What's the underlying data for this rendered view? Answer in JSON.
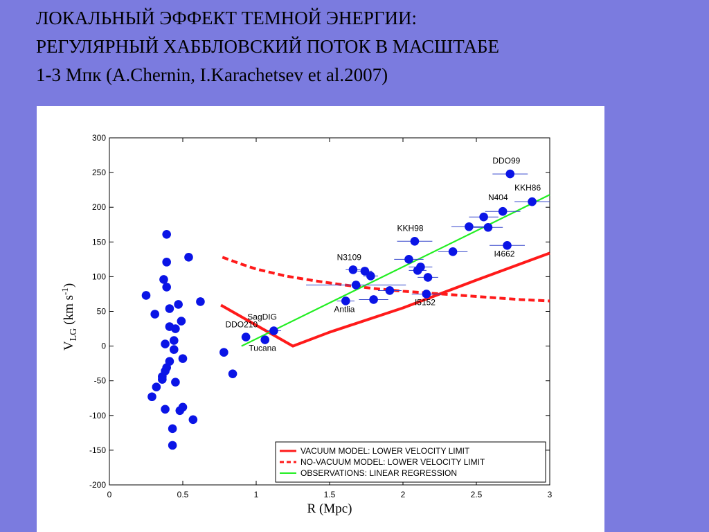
{
  "slide": {
    "title_line1": "ЛОКАЛЬНЫЙ ЭФФЕКТ ТЕМНОЙ ЭНЕРГИИ:",
    "title_line2": "РЕГУЛЯРНЫЙ ХАББЛОВСКИЙ ПОТОК В МАСШТАБЕ",
    "title_line3": "1-3 Мпк (A.Chernin, I.Karachetsev et al.2007)"
  },
  "chart_data": {
    "type": "scatter",
    "xlabel": "R (Mpc)",
    "ylabel_main": "V",
    "ylabel_sub": "LG",
    "ylabel_unit": "(km s",
    "ylabel_exp": "-1",
    "ylabel_close": ")",
    "xlim": [
      0,
      3
    ],
    "ylim": [
      -200,
      300
    ],
    "xticks": [
      0,
      0.5,
      1,
      1.5,
      2,
      2.5,
      3
    ],
    "xtick_labels": [
      "0",
      "0.5",
      "1",
      "1.5",
      "2",
      "2.5",
      "3"
    ],
    "yticks": [
      300,
      250,
      200,
      150,
      100,
      50,
      0,
      -50,
      -100,
      -150,
      -200
    ],
    "ytick_labels": [
      "300",
      "250",
      "200",
      "150",
      "100",
      "50",
      "0",
      "-50",
      "-100",
      "-150",
      "-200"
    ],
    "grid": false,
    "legend_position": "bottom-right",
    "colors": {
      "points": "#0a14e6",
      "vacuum": "#ff1a1a",
      "novacuum": "#ff1a1a",
      "regression": "#22ee22",
      "errorbar": "#3344cc"
    },
    "points": [
      {
        "x": 0.25,
        "y": 73
      },
      {
        "x": 0.31,
        "y": 46
      },
      {
        "x": 0.39,
        "y": 161
      },
      {
        "x": 0.37,
        "y": 96
      },
      {
        "x": 0.39,
        "y": 121
      },
      {
        "x": 0.39,
        "y": 85
      },
      {
        "x": 0.41,
        "y": 54
      },
      {
        "x": 0.47,
        "y": 60
      },
      {
        "x": 0.41,
        "y": 28
      },
      {
        "x": 0.49,
        "y": 36
      },
      {
        "x": 0.45,
        "y": 25
      },
      {
        "x": 0.38,
        "y": 3
      },
      {
        "x": 0.44,
        "y": 8
      },
      {
        "x": 0.44,
        "y": -5
      },
      {
        "x": 0.5,
        "y": -18
      },
      {
        "x": 0.41,
        "y": -22
      },
      {
        "x": 0.39,
        "y": -31
      },
      {
        "x": 0.38,
        "y": -36
      },
      {
        "x": 0.36,
        "y": -44
      },
      {
        "x": 0.36,
        "y": -48
      },
      {
        "x": 0.45,
        "y": -52
      },
      {
        "x": 0.32,
        "y": -59
      },
      {
        "x": 0.29,
        "y": -73
      },
      {
        "x": 0.38,
        "y": -91
      },
      {
        "x": 0.5,
        "y": -88
      },
      {
        "x": 0.48,
        "y": -93
      },
      {
        "x": 0.57,
        "y": -106
      },
      {
        "x": 0.43,
        "y": -119
      },
      {
        "x": 0.43,
        "y": -143
      },
      {
        "x": 0.54,
        "y": 128
      },
      {
        "x": 0.62,
        "y": 64
      },
      {
        "x": 0.78,
        "y": -9,
        "xerr": 0.02
      },
      {
        "x": 0.84,
        "y": -40
      },
      {
        "x": 0.93,
        "y": 13,
        "xerr": 0.03
      },
      {
        "x": 1.06,
        "y": 9
      },
      {
        "x": 1.12,
        "y": 22,
        "xerr": 0.05
      },
      {
        "x": 1.61,
        "y": 65,
        "xerr": 0.06
      },
      {
        "x": 1.66,
        "y": 110,
        "xerr": 0.05
      },
      {
        "x": 1.68,
        "y": 88,
        "xerr": 0.34
      },
      {
        "x": 1.74,
        "y": 108,
        "xerr": 0.05
      },
      {
        "x": 1.78,
        "y": 101,
        "xerr": 0.05
      },
      {
        "x": 1.8,
        "y": 67,
        "xerr": 0.1
      },
      {
        "x": 1.91,
        "y": 80,
        "xerr": 0.08
      },
      {
        "x": 2.04,
        "y": 125,
        "xerr": 0.1
      },
      {
        "x": 2.08,
        "y": 151,
        "xerr": 0.12
      },
      {
        "x": 2.1,
        "y": 109,
        "xerr": 0.06
      },
      {
        "x": 2.12,
        "y": 114,
        "xerr": 0.08
      },
      {
        "x": 2.17,
        "y": 99,
        "xerr": 0.07
      },
      {
        "x": 2.16,
        "y": 75,
        "xerr": 0.1
      },
      {
        "x": 2.34,
        "y": 136,
        "xerr": 0.1
      },
      {
        "x": 2.45,
        "y": 172,
        "xerr": 0.12
      },
      {
        "x": 2.55,
        "y": 186,
        "xerr": 0.1
      },
      {
        "x": 2.58,
        "y": 171,
        "xerr": 0.1
      },
      {
        "x": 2.68,
        "y": 194,
        "xerr": 0.12
      },
      {
        "x": 2.71,
        "y": 145,
        "xerr": 0.12
      },
      {
        "x": 2.73,
        "y": 248,
        "xerr": 0.12
      },
      {
        "x": 2.88,
        "y": 208,
        "xerr": 0.12
      }
    ],
    "point_labels": [
      {
        "text": "DDO99",
        "x": 2.61,
        "y": 263
      },
      {
        "text": "KKH86",
        "x": 2.76,
        "y": 224
      },
      {
        "text": "N404",
        "x": 2.58,
        "y": 210
      },
      {
        "text": "KKH98",
        "x": 1.96,
        "y": 166
      },
      {
        "text": "I4662",
        "x": 2.62,
        "y": 129
      },
      {
        "text": "N3109",
        "x": 1.55,
        "y": 124
      },
      {
        "text": "SagDIG",
        "x": 0.94,
        "y": 38
      },
      {
        "text": "DDO210",
        "x": 0.79,
        "y": 27
      },
      {
        "text": "Tucana",
        "x": 0.95,
        "y": -7
      },
      {
        "text": "Antlia",
        "x": 1.53,
        "y": 49
      },
      {
        "text": "I5152",
        "x": 2.08,
        "y": 59
      }
    ],
    "series": [
      {
        "name": "VACUUM MODEL: LOWER VELOCITY LIMIT",
        "style": "solid",
        "x": [
          0.76,
          1.25,
          1.5,
          2.0,
          2.5,
          3.0
        ],
        "y": [
          59,
          0,
          20,
          55,
          95,
          134
        ]
      },
      {
        "name": "NO-VACUUM  MODEL: LOWER VELOCITY LIMIT",
        "style": "dashed",
        "x": [
          0.77,
          0.9,
          1.0,
          1.2,
          1.4,
          1.6,
          1.8,
          2.0,
          2.2,
          2.4,
          2.6,
          2.8,
          3.0
        ],
        "y": [
          128,
          118,
          111,
          101,
          94,
          88,
          83,
          79,
          76,
          73,
          70,
          67,
          65
        ]
      },
      {
        "name": "OBSERVATIONS:  LINEAR  REGRESSION",
        "style": "solid",
        "x": [
          0.9,
          3.0
        ],
        "y": [
          0,
          218
        ]
      }
    ]
  }
}
